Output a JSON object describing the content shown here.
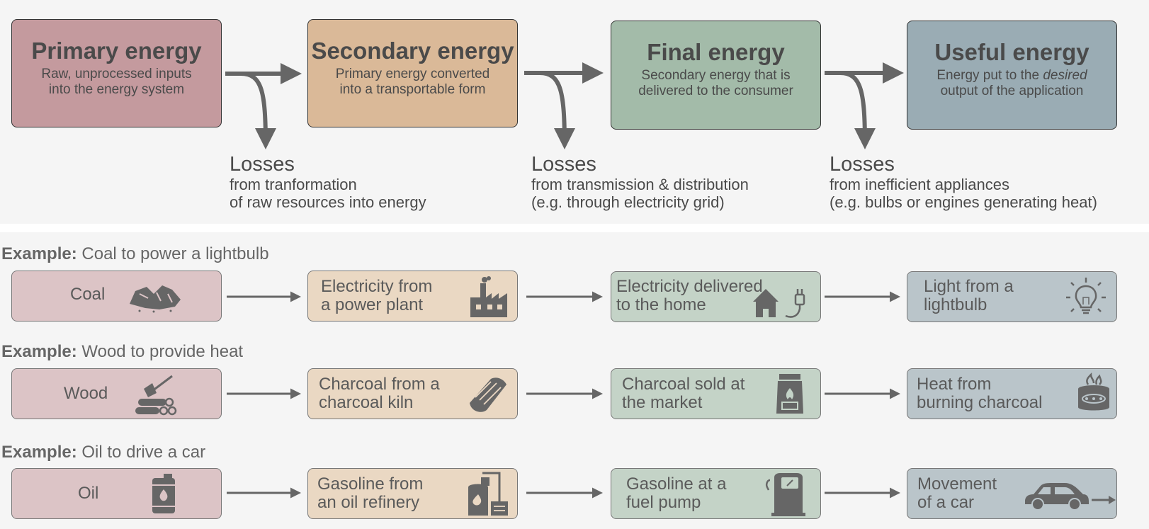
{
  "colors": {
    "primary": "#c49a9e",
    "secondary": "#dab998",
    "final": "#a3bba9",
    "useful": "#9aacb4",
    "primary_light": "#dcc4c6",
    "secondary_light": "#ead8c3",
    "final_light": "#c4d3c7",
    "useful_light": "#bac5ca",
    "arrow": "#666666"
  },
  "stages": [
    {
      "title": "Primary energy",
      "desc_1": "Raw, unprocessed inputs",
      "desc_2": "into the energy system"
    },
    {
      "title": "Secondary energy",
      "desc_1": "Primary energy converted",
      "desc_2": "into a transportable form"
    },
    {
      "title": "Final energy",
      "desc_1": "Secondary energy that is",
      "desc_2": "delivered to the consumer"
    },
    {
      "title": "Useful energy",
      "desc_1_prefix": "Energy put to the ",
      "desc_1_em": "desired",
      "desc_2": "output of the application"
    }
  ],
  "losses": [
    {
      "title": "Losses",
      "line_1": "from tranformation",
      "line_2": "of raw resources into energy"
    },
    {
      "title": "Losses",
      "line_1": "from transmission & distribution",
      "line_2": "(e.g. through electricity grid)"
    },
    {
      "title": "Losses",
      "line_1": "from inefficient appliances",
      "line_2": "(e.g. bulbs or engines generating heat)"
    }
  ],
  "examples": [
    {
      "prefix": "Example:",
      "label": " Coal to power a lightbulb",
      "steps": [
        {
          "text": "Coal",
          "icon": "coal-icon"
        },
        {
          "text": "Electricity from\na power plant",
          "icon": "power-plant-icon"
        },
        {
          "text": "Electricity delivered\nto the home",
          "icon": "house-plug-icon"
        },
        {
          "text": "Light from a\nlightbulb",
          "icon": "lightbulb-icon"
        }
      ]
    },
    {
      "prefix": "Example:",
      "label": " Wood to provide heat",
      "steps": [
        {
          "text": "Wood",
          "icon": "axe-logs-icon"
        },
        {
          "text": "Charcoal from a\ncharcoal kiln",
          "icon": "charcoal-icon"
        },
        {
          "text": "Charcoal sold at\nthe market",
          "icon": "charcoal-bag-icon"
        },
        {
          "text": "Heat from\nburning charcoal",
          "icon": "stove-icon"
        }
      ]
    },
    {
      "prefix": "Example:",
      "label": " Oil to drive a car",
      "steps": [
        {
          "text": "Oil",
          "icon": "oil-barrel-icon"
        },
        {
          "text": "Gasoline from\nan oil refinery",
          "icon": "refinery-icon"
        },
        {
          "text": "Gasoline at a\nfuel pump",
          "icon": "fuel-pump-icon"
        },
        {
          "text": "Movement\nof a car",
          "icon": "car-icon"
        }
      ]
    }
  ]
}
